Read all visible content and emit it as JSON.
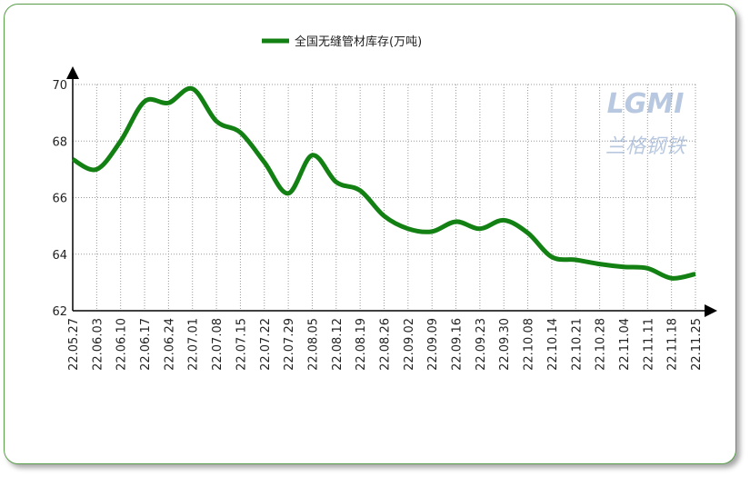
{
  "chart_data": {
    "type": "line",
    "series": [
      {
        "name": "全国无缝管材库存(万吨)",
        "color": "#128012",
        "values": [
          67.35,
          67.0,
          68.0,
          69.4,
          69.35,
          69.85,
          68.7,
          68.3,
          67.25,
          66.15,
          67.5,
          66.55,
          66.25,
          65.35,
          64.9,
          64.8,
          65.15,
          64.9,
          65.2,
          64.75,
          63.9,
          63.8,
          63.65,
          63.55,
          63.5,
          63.15,
          63.3
        ]
      }
    ],
    "categories": [
      "22.05.27",
      "22.06.03",
      "22.06.10",
      "22.06.17",
      "22.06.24",
      "22.07.01",
      "22.07.08",
      "22.07.15",
      "22.07.22",
      "22.07.29",
      "22.08.05",
      "22.08.12",
      "22.08.19",
      "22.08.26",
      "22.09.02",
      "22.09.09",
      "22.09.16",
      "22.09.23",
      "22.09.30",
      "22.10.08",
      "22.10.14",
      "22.10.21",
      "22.10.28",
      "22.11.04",
      "22.11.11",
      "22.11.18",
      "22.11.25"
    ],
    "ylim": [
      62,
      70
    ],
    "yticks": [
      62,
      64,
      66,
      68,
      70
    ],
    "grid": true,
    "legend": "top",
    "watermark": [
      "LGMI",
      "兰格钢铁"
    ]
  }
}
